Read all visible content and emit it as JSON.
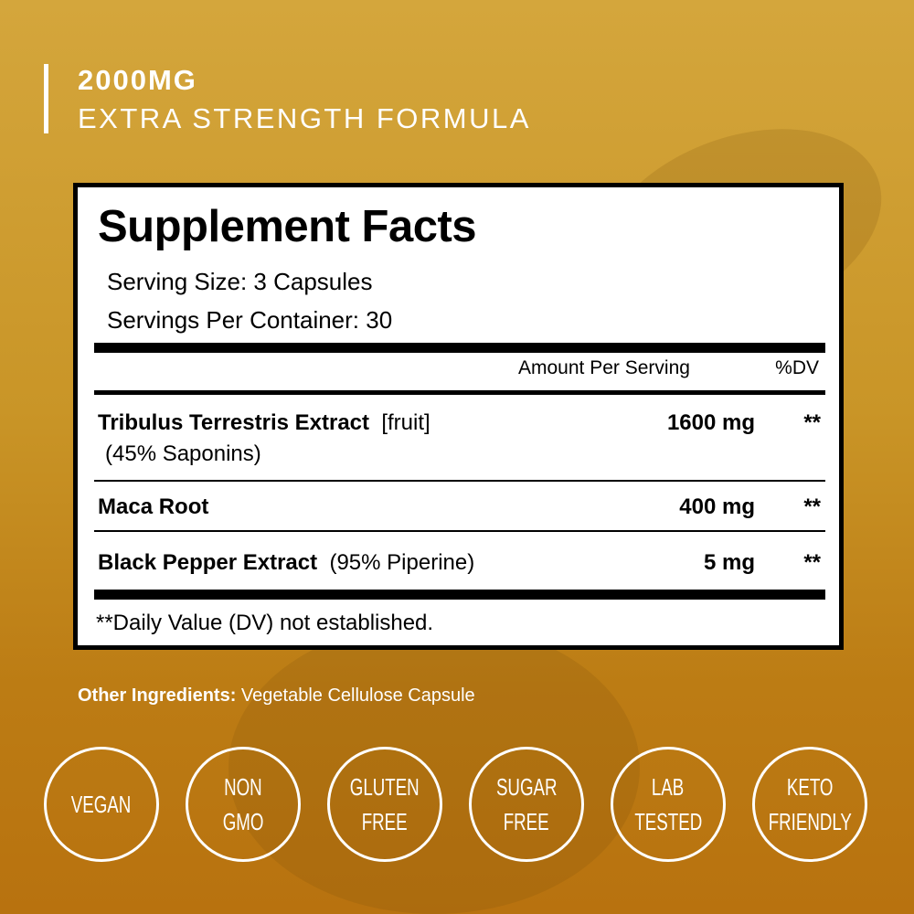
{
  "header": {
    "dose": "2000MG",
    "tagline": "EXTRA STRENGTH FORMULA"
  },
  "facts": {
    "title": "Supplement Facts",
    "serving_size": "Serving Size: 3 Capsules",
    "servings_per_container": "Servings Per Container: 30",
    "col_amount": "Amount Per Serving",
    "col_dv": "%DV",
    "rows": [
      {
        "name": "Tribulus Terrestris Extract",
        "note": "[fruit]",
        "sub": "(45% Saponins)",
        "amount": "1600 mg",
        "dv": "**"
      },
      {
        "name": "Maca Root",
        "note": "",
        "amount": "400 mg",
        "dv": "**"
      },
      {
        "name": "Black Pepper Extract",
        "note": "(95% Piperine)",
        "amount": "5 mg",
        "dv": "**"
      }
    ],
    "footnote": "**Daily Value (DV) not established."
  },
  "other": {
    "label": "Other Ingredients:",
    "value": "Vegetable Cellulose Capsule"
  },
  "badges": [
    [
      "VEGAN"
    ],
    [
      "NON",
      "GMO"
    ],
    [
      "GLUTEN",
      "FREE"
    ],
    [
      "SUGAR",
      "FREE"
    ],
    [
      "LAB",
      "TESTED"
    ],
    [
      "KETO",
      "FRIENDLY"
    ]
  ]
}
